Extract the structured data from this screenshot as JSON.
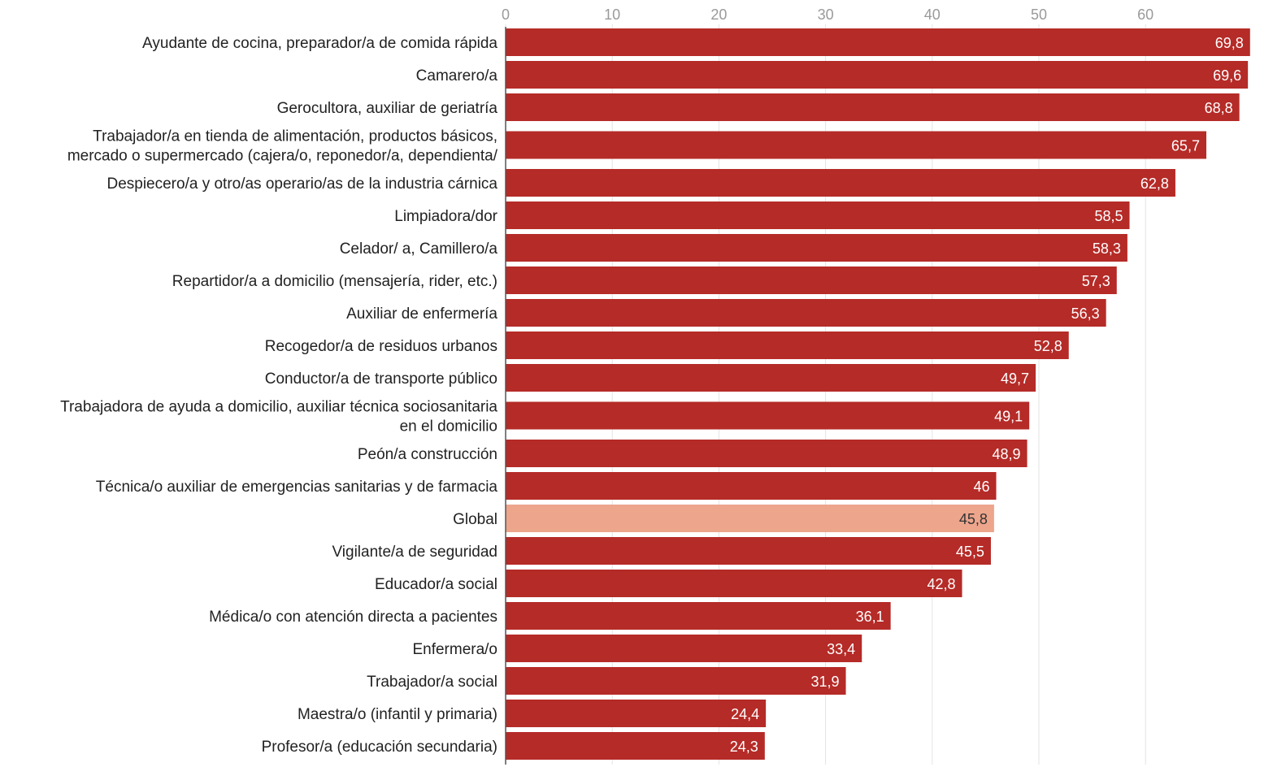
{
  "chart_data": {
    "type": "bar",
    "orientation": "horizontal",
    "title": "",
    "xlabel": "",
    "ylabel": "",
    "xlim": [
      0,
      70
    ],
    "x_ticks": [
      0,
      10,
      20,
      30,
      40,
      50,
      60
    ],
    "x_tick_labels": [
      "0",
      "10",
      "20",
      "30",
      "40",
      "50",
      "60"
    ],
    "grid": true,
    "legend": "none",
    "colors": {
      "bar": "#b52b27",
      "highlight": "#eda58c",
      "label_on_bar": "#ffffff",
      "label_on_highlight": "#333333"
    },
    "categories": [
      [
        "Ayudante de cocina, preparador/a de comida rápida"
      ],
      [
        "Camarero/a"
      ],
      [
        "Gerocultora, auxiliar de geriatría"
      ],
      [
        "Trabajador/a en tienda de alimentación, productos básicos,",
        "mercado o supermercado (cajera/o, reponedor/a, dependienta/"
      ],
      [
        "Despiecero/a y otro/as operario/as de la industria cárnica"
      ],
      [
        "Limpiadora/dor"
      ],
      [
        "Celador/ a, Camillero/a"
      ],
      [
        "Repartidor/a a domicilio (mensajería, rider, etc.)"
      ],
      [
        "Auxiliar de enfermería"
      ],
      [
        "Recogedor/a de residuos urbanos"
      ],
      [
        "Conductor/a de transporte público"
      ],
      [
        "Trabajadora de ayuda a domicilio, auxiliar técnica sociosanitaria",
        "en el domicilio"
      ],
      [
        "Peón/a construcción"
      ],
      [
        "Técnica/o auxiliar de emergencias sanitarias y de farmacia"
      ],
      [
        "Global"
      ],
      [
        "Vigilante/a de seguridad"
      ],
      [
        "Educador/a social"
      ],
      [
        "Médica/o con atención directa a pacientes"
      ],
      [
        "Enfermera/o"
      ],
      [
        "Trabajador/a social"
      ],
      [
        "Maestra/o (infantil y primaria)"
      ],
      [
        "Profesor/a (educación secundaria)"
      ]
    ],
    "values": [
      69.8,
      69.6,
      68.8,
      65.7,
      62.8,
      58.5,
      58.3,
      57.3,
      56.3,
      52.8,
      49.7,
      49.1,
      48.9,
      46,
      45.8,
      45.5,
      42.8,
      36.1,
      33.4,
      31.9,
      24.4,
      24.3
    ],
    "value_labels": [
      "69,8",
      "69,6",
      "68,8",
      "65,7",
      "62,8",
      "58,5",
      "58,3",
      "57,3",
      "56,3",
      "52,8",
      "49,7",
      "49,1",
      "48,9",
      "46",
      "45,8",
      "45,5",
      "42,8",
      "36,1",
      "33,4",
      "31,9",
      "24,4",
      "24,3"
    ],
    "highlight_category": "Global"
  }
}
